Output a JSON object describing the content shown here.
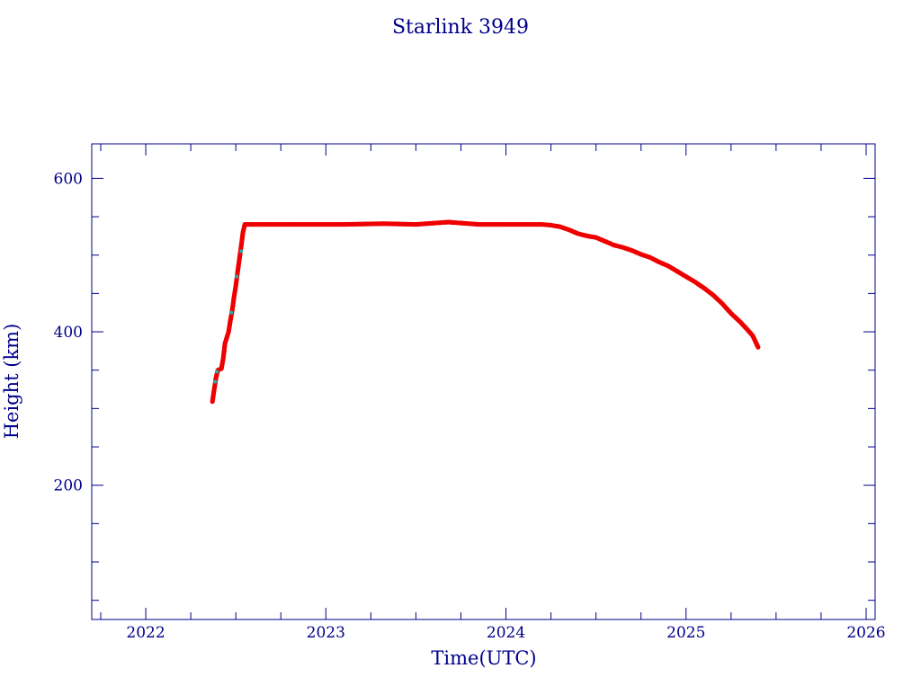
{
  "colors": {
    "axis": "#00008b",
    "text": "#00008b",
    "points": "#ee0000",
    "accent_points": "#20b2aa",
    "background": "#ffffff"
  },
  "chart_data": {
    "type": "scatter",
    "title": "Starlink 3949",
    "xlabel": "Time(UTC)",
    "ylabel": "Height (km)",
    "xlim": [
      2021.7,
      2026.05
    ],
    "ylim": [
      25,
      645
    ],
    "x_ticks": [
      2022,
      2023,
      2024,
      2025,
      2026
    ],
    "x_tick_labels": [
      "2022",
      "2023",
      "2024",
      "2025",
      "2026"
    ],
    "y_ticks": [
      200,
      400,
      600
    ],
    "y_tick_labels": [
      "200",
      "400",
      "600"
    ],
    "grid": false,
    "legend": "none",
    "series": [
      {
        "color": "#ee0000",
        "points": [
          [
            2022.37,
            309
          ],
          [
            2022.38,
            325
          ],
          [
            2022.39,
            340
          ],
          [
            2022.4,
            350
          ],
          [
            2022.42,
            352
          ],
          [
            2022.43,
            365
          ],
          [
            2022.44,
            385
          ],
          [
            2022.46,
            400
          ],
          [
            2022.47,
            415
          ],
          [
            2022.48,
            428
          ],
          [
            2022.49,
            445
          ],
          [
            2022.5,
            460
          ],
          [
            2022.51,
            478
          ],
          [
            2022.52,
            495
          ],
          [
            2022.53,
            512
          ],
          [
            2022.54,
            530
          ],
          [
            2022.55,
            540
          ],
          [
            2022.7,
            540
          ],
          [
            2022.9,
            540
          ],
          [
            2023.1,
            540
          ],
          [
            2023.32,
            541
          ],
          [
            2023.5,
            540
          ],
          [
            2023.68,
            543
          ],
          [
            2023.85,
            540
          ],
          [
            2024.0,
            540
          ],
          [
            2024.2,
            540
          ],
          [
            2024.25,
            539
          ],
          [
            2024.3,
            537
          ],
          [
            2024.35,
            533
          ],
          [
            2024.4,
            528
          ],
          [
            2024.45,
            525
          ],
          [
            2024.5,
            523
          ],
          [
            2024.55,
            518
          ],
          [
            2024.6,
            513
          ],
          [
            2024.65,
            510
          ],
          [
            2024.7,
            506
          ],
          [
            2024.75,
            501
          ],
          [
            2024.8,
            497
          ],
          [
            2024.85,
            491
          ],
          [
            2024.9,
            486
          ],
          [
            2024.95,
            479
          ],
          [
            2025.0,
            472
          ],
          [
            2025.05,
            465
          ],
          [
            2025.1,
            457
          ],
          [
            2025.15,
            448
          ],
          [
            2025.2,
            437
          ],
          [
            2025.25,
            424
          ],
          [
            2025.3,
            413
          ],
          [
            2025.34,
            403
          ],
          [
            2025.37,
            395
          ],
          [
            2025.39,
            385
          ],
          [
            2025.4,
            380
          ]
        ]
      },
      {
        "color": "#20b2aa",
        "points": [
          [
            2022.385,
            335
          ],
          [
            2022.395,
            348
          ],
          [
            2022.475,
            425
          ],
          [
            2022.505,
            472
          ],
          [
            2022.53,
            505
          ]
        ]
      }
    ]
  }
}
